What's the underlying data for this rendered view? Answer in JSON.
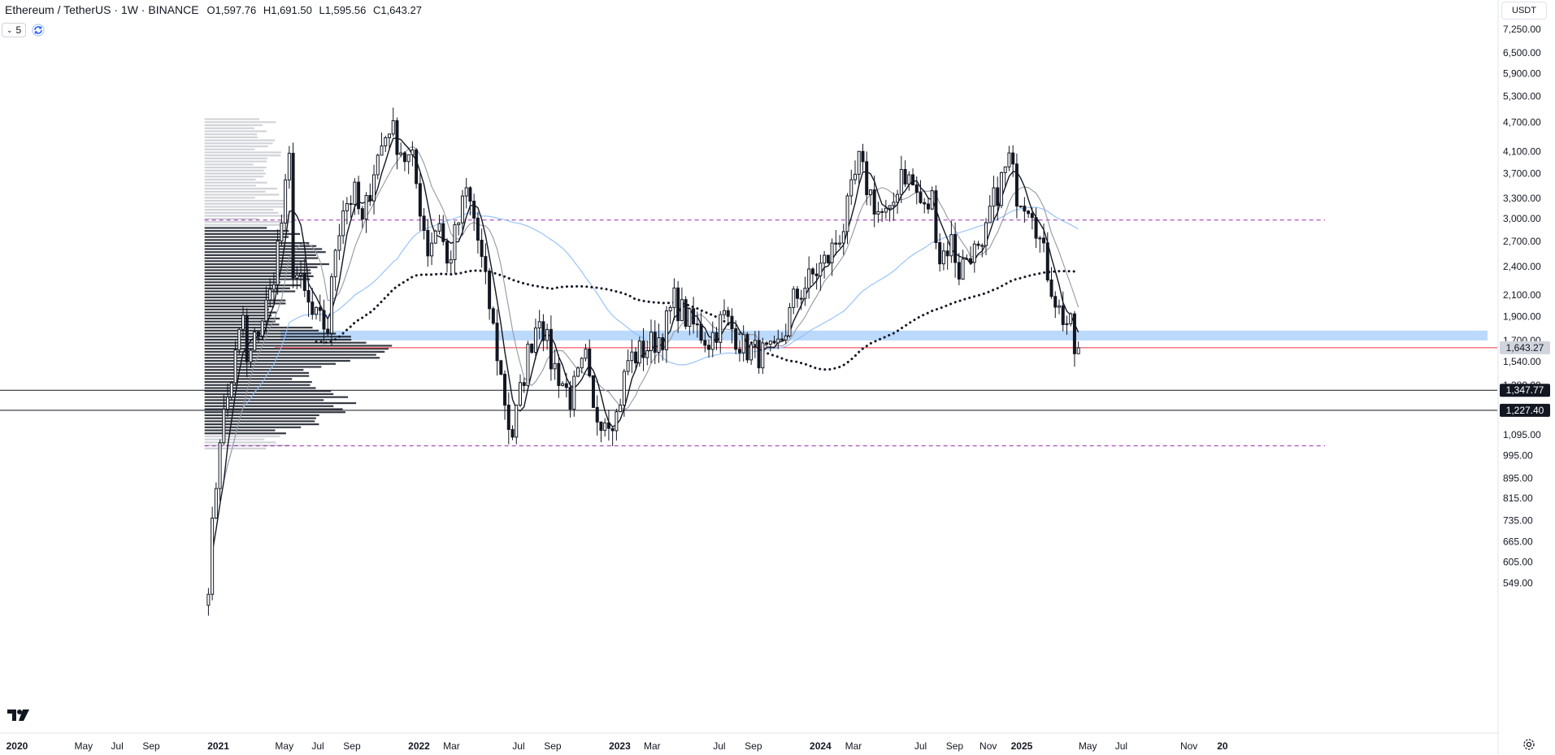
{
  "header": {
    "symbol": "Ethereum / TetherUS · 1W · BINANCE",
    "ohlc": [
      {
        "key": "O",
        "value": "1,597.76"
      },
      {
        "key": "H",
        "value": "1,691.50"
      },
      {
        "key": "L",
        "value": "1,595.56"
      },
      {
        "key": "C",
        "value": "1,643.27"
      }
    ],
    "indicators_count": "5",
    "currency": "USDT"
  },
  "colors": {
    "candle": "#131722",
    "ma_fast": "#131722",
    "ma_slow": "#9598a1",
    "ma_blue": "#90bff9",
    "zone": "#bbd9fb",
    "current_line": "#f23645",
    "range_dashed": "#9c27b0",
    "volume_profile": "#131722"
  },
  "chart_data": {
    "type": "candlestick",
    "instrument": "Ethereum / TetherUS",
    "interval": "1W",
    "exchange": "BINANCE",
    "scale": "log",
    "ylim": [
      500,
      8000
    ],
    "y_ticks": [
      "7,250.00",
      "6,500.00",
      "5,900.00",
      "5,300.00",
      "4,700.00",
      "4,100.00",
      "3,700.00",
      "3,300.00",
      "3,000.00",
      "2,700.00",
      "2,400.00",
      "2,100.00",
      "1,900.00",
      "1,700.00",
      "1,540.00",
      "1,380.00",
      "1,095.00",
      "995.00",
      "895.00",
      "815.00",
      "735.00",
      "665.00",
      "605.00",
      "549.00"
    ],
    "x_ticks": [
      {
        "label": "2020",
        "date": "2020-01-01",
        "bold": true
      },
      {
        "label": "May",
        "date": "2020-05-01"
      },
      {
        "label": "Jul",
        "date": "2020-07-01"
      },
      {
        "label": "Sep",
        "date": "2020-09-01"
      },
      {
        "label": "2021",
        "date": "2021-01-01",
        "bold": true
      },
      {
        "label": "May",
        "date": "2021-05-01"
      },
      {
        "label": "Jul",
        "date": "2021-07-01"
      },
      {
        "label": "Sep",
        "date": "2021-09-01"
      },
      {
        "label": "2022",
        "date": "2022-01-01",
        "bold": true
      },
      {
        "label": "Mar",
        "date": "2022-03-01"
      },
      {
        "label": "Jul",
        "date": "2022-07-01"
      },
      {
        "label": "Sep",
        "date": "2022-09-01"
      },
      {
        "label": "2023",
        "date": "2023-01-01",
        "bold": true
      },
      {
        "label": "Mar",
        "date": "2023-03-01"
      },
      {
        "label": "Jul",
        "date": "2023-07-01"
      },
      {
        "label": "Sep",
        "date": "2023-09-01"
      },
      {
        "label": "2024",
        "date": "2024-01-01",
        "bold": true
      },
      {
        "label": "Mar",
        "date": "2024-03-01"
      },
      {
        "label": "Jul",
        "date": "2024-07-01"
      },
      {
        "label": "Sep",
        "date": "2024-09-01"
      },
      {
        "label": "Nov",
        "date": "2024-11-01"
      },
      {
        "label": "2025",
        "date": "2025-01-01",
        "bold": true
      },
      {
        "label": "May",
        "date": "2025-05-01"
      },
      {
        "label": "Jul",
        "date": "2025-07-01"
      },
      {
        "label": "Nov",
        "date": "2025-11-01"
      },
      {
        "label": "20",
        "date": "2026-01-01",
        "bold": true
      }
    ],
    "xlim": [
      "2019-12-01",
      "2026-01-10"
    ],
    "price_anchors": [
      [
        "2020-12-14",
        560
      ],
      [
        "2021-01-04",
        1100
      ],
      [
        "2021-01-18",
        1300
      ],
      [
        "2021-02-15",
        1900
      ],
      [
        "2021-02-22",
        1500
      ],
      [
        "2021-03-15",
        1800
      ],
      [
        "2021-04-05",
        2100
      ],
      [
        "2021-04-26",
        2950
      ],
      [
        "2021-05-10",
        3900
      ],
      [
        "2021-05-17",
        2400
      ],
      [
        "2021-05-24",
        2300
      ],
      [
        "2021-06-21",
        1900
      ],
      [
        "2021-07-19",
        1800
      ],
      [
        "2021-08-02",
        2650
      ],
      [
        "2021-08-16",
        3200
      ],
      [
        "2021-09-06",
        3350
      ],
      [
        "2021-09-20",
        2900
      ],
      [
        "2021-10-11",
        3800
      ],
      [
        "2021-11-08",
        4650
      ],
      [
        "2021-12-06",
        4000
      ],
      [
        "2021-12-20",
        3900
      ],
      [
        "2022-01-17",
        2600
      ],
      [
        "2022-02-07",
        3000
      ],
      [
        "2022-02-21",
        2400
      ],
      [
        "2022-03-28",
        3400
      ],
      [
        "2022-04-11",
        3000
      ],
      [
        "2022-05-09",
        2000
      ],
      [
        "2022-06-13",
        1150
      ],
      [
        "2022-06-20",
        1100
      ],
      [
        "2022-07-18",
        1600
      ],
      [
        "2022-08-08",
        1950
      ],
      [
        "2022-08-29",
        1550
      ],
      [
        "2022-09-12",
        1450
      ],
      [
        "2022-10-03",
        1300
      ],
      [
        "2022-10-31",
        1550
      ],
      [
        "2022-11-14",
        1200
      ],
      [
        "2022-12-26",
        1200
      ],
      [
        "2023-01-16",
        1550
      ],
      [
        "2023-02-20",
        1650
      ],
      [
        "2023-03-20",
        1750
      ],
      [
        "2023-04-10",
        2050
      ],
      [
        "2023-05-08",
        1850
      ],
      [
        "2023-06-12",
        1700
      ],
      [
        "2023-07-10",
        1900
      ],
      [
        "2023-08-14",
        1650
      ],
      [
        "2023-09-11",
        1600
      ],
      [
        "2023-10-09",
        1580
      ],
      [
        "2023-10-30",
        1800
      ],
      [
        "2023-11-13",
        2050
      ],
      [
        "2023-12-11",
        2250
      ],
      [
        "2024-01-15",
        2500
      ],
      [
        "2024-02-12",
        2900
      ],
      [
        "2024-03-11",
        3900
      ],
      [
        "2024-03-25",
        3500
      ],
      [
        "2024-04-15",
        3100
      ],
      [
        "2024-05-06",
        3000
      ],
      [
        "2024-05-27",
        3800
      ],
      [
        "2024-06-17",
        3500
      ],
      [
        "2024-07-08",
        3100
      ],
      [
        "2024-07-22",
        3300
      ],
      [
        "2024-08-05",
        2500
      ],
      [
        "2024-08-26",
        2700
      ],
      [
        "2024-09-09",
        2350
      ],
      [
        "2024-09-30",
        2600
      ],
      [
        "2024-10-21",
        2500
      ],
      [
        "2024-11-04",
        3100
      ],
      [
        "2024-12-09",
        3950
      ],
      [
        "2024-12-23",
        3400
      ],
      [
        "2025-01-06",
        3300
      ],
      [
        "2025-01-20",
        3200
      ],
      [
        "2025-02-03",
        2700
      ],
      [
        "2025-02-24",
        2200
      ],
      [
        "2025-03-10",
        1950
      ],
      [
        "2025-03-31",
        1800
      ],
      [
        "2025-04-07",
        1597.76
      ]
    ],
    "last_candle": {
      "open": 1597.76,
      "high": 1691.5,
      "low": 1595.56,
      "close": 1643.27
    },
    "moving_averages": [
      {
        "key": "fast",
        "style": "solid-dark"
      },
      {
        "key": "slow",
        "style": "solid-gray"
      },
      {
        "key": "long",
        "style": "solid-blue"
      },
      {
        "key": "long_dotted",
        "style": "dotted-black"
      }
    ],
    "levels": {
      "current_price": 1643.27,
      "current_price_label": "1,643.27",
      "support_1": 1347.77,
      "support_1_label": "1,347.77",
      "support_2": 1227.4,
      "support_2_label": "1,227.40",
      "zone_low": 1700,
      "zone_high": 1780,
      "range_high": 2980,
      "range_low": 1040
    },
    "volume_profile": {
      "start_date": "2020-12-07",
      "price_range": [
        1020,
        4800
      ]
    }
  }
}
